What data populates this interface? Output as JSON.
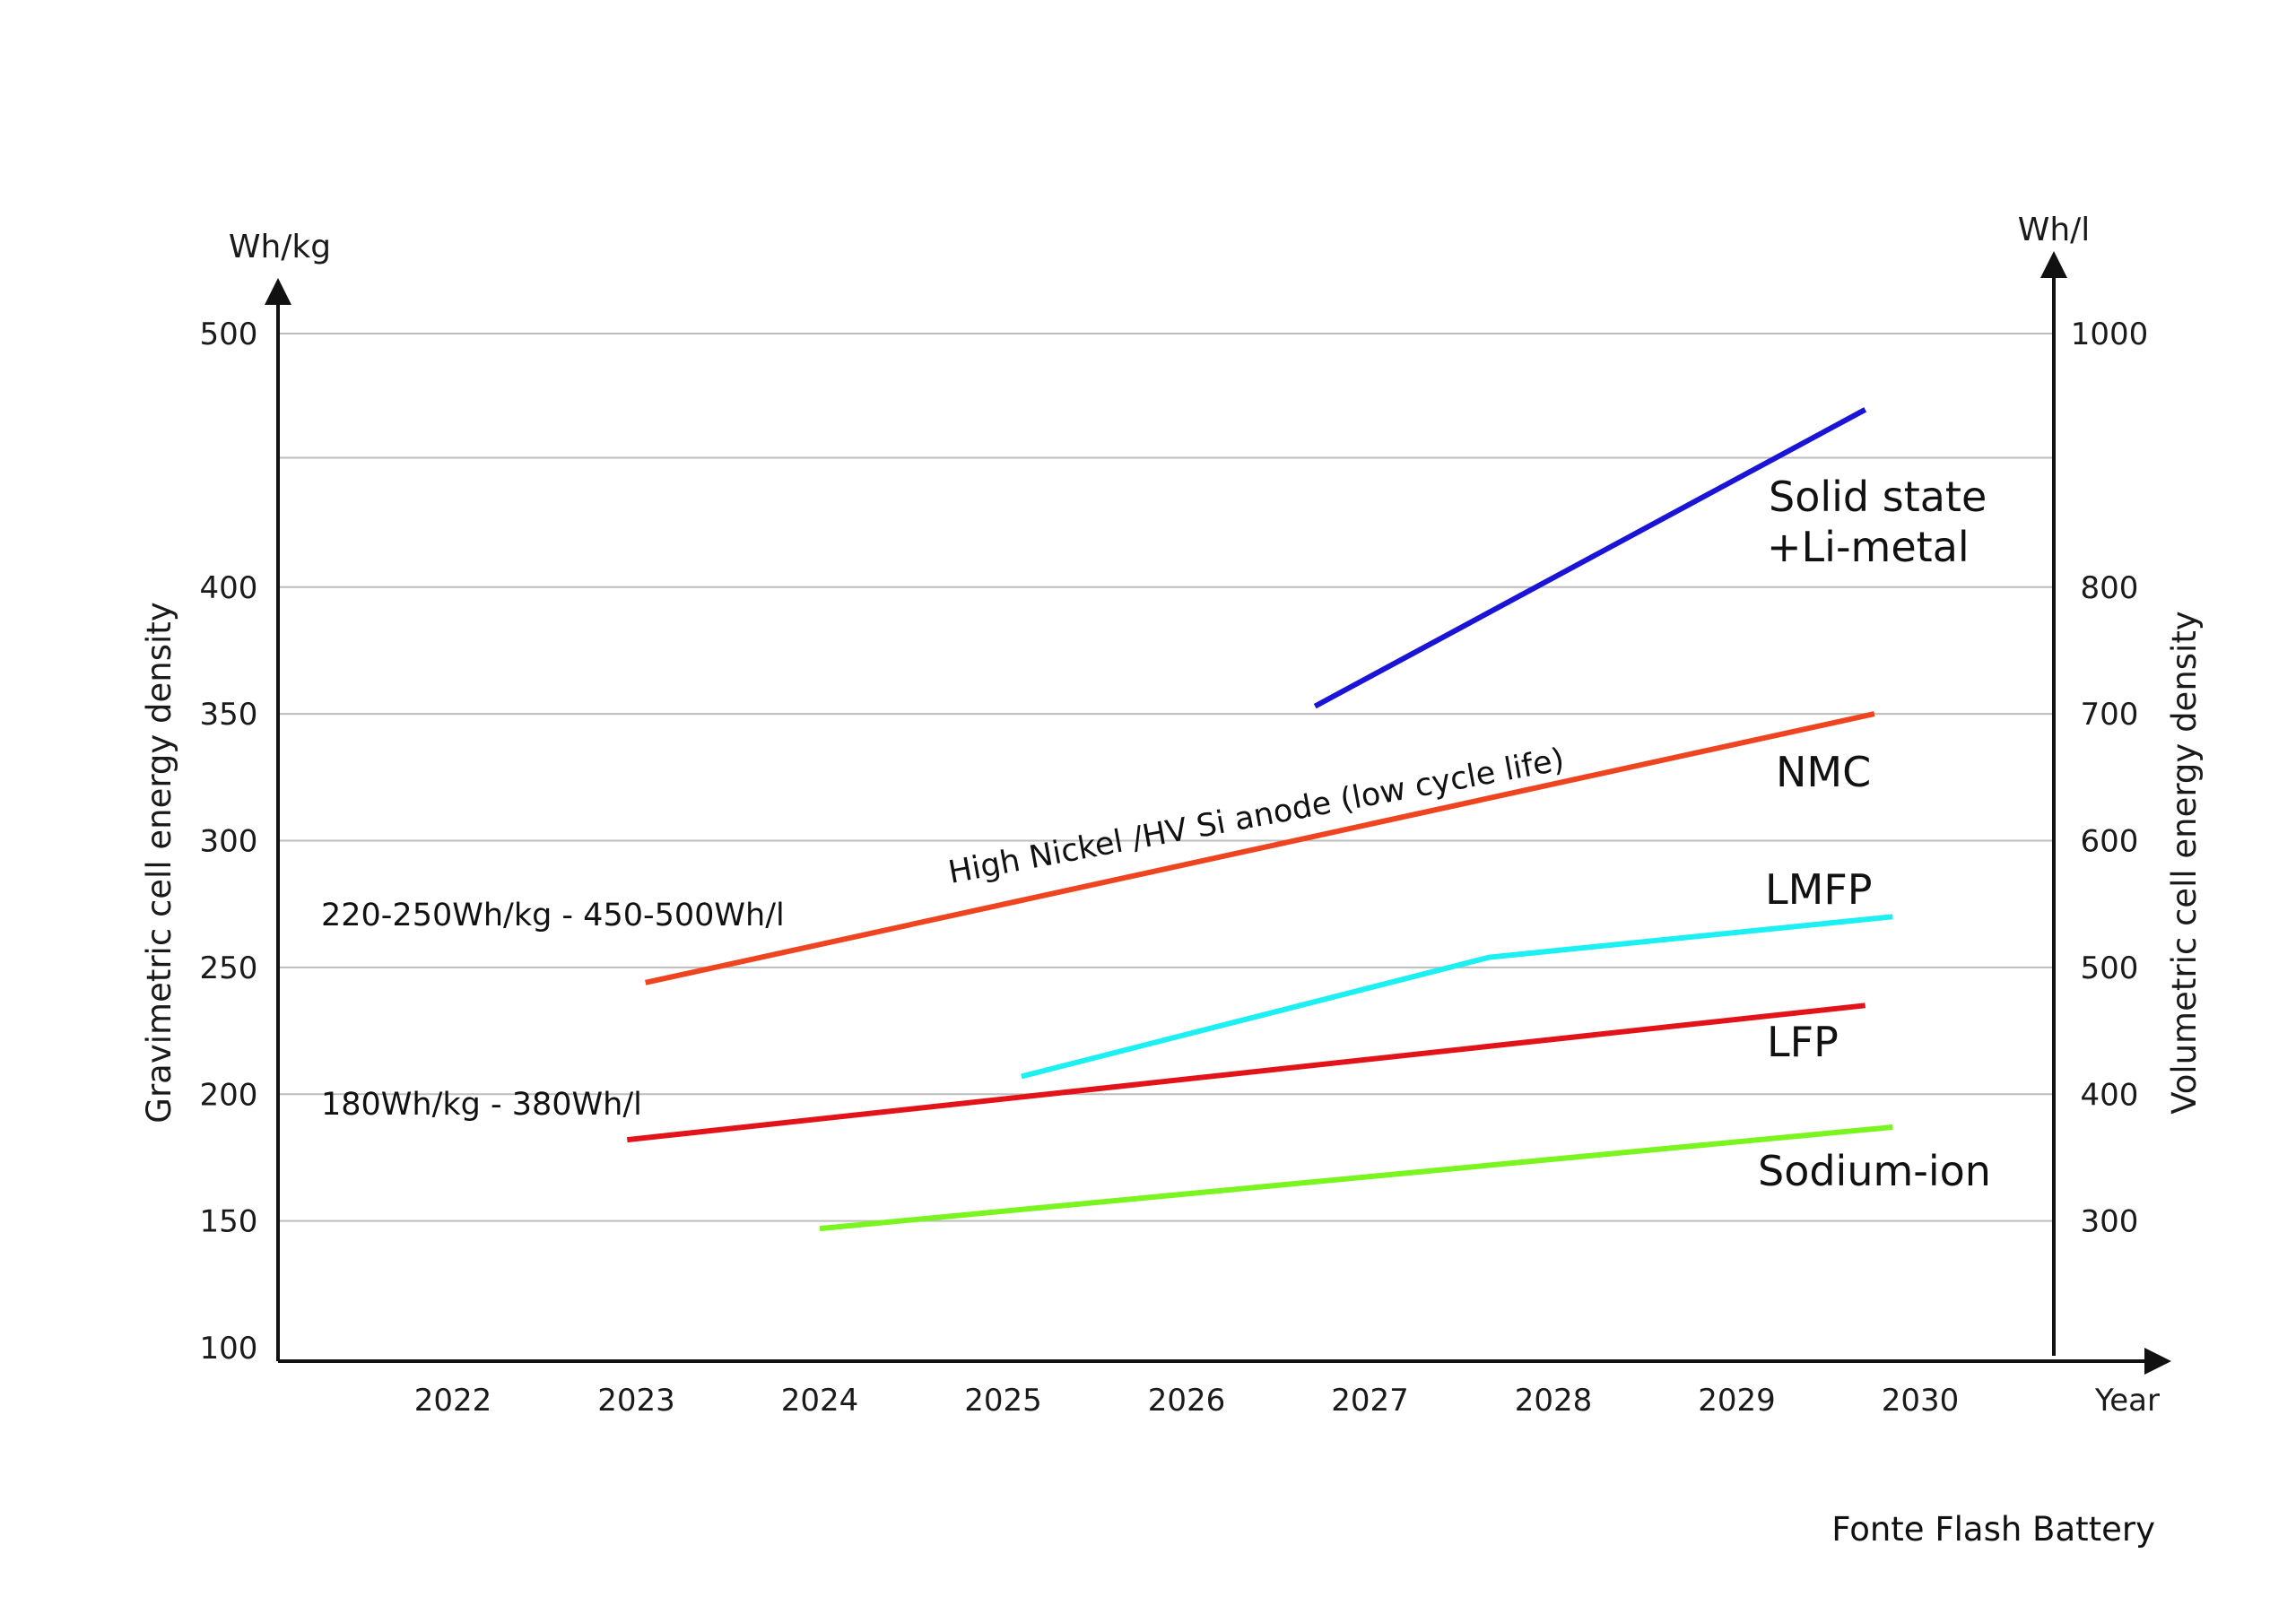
{
  "chart_data": {
    "type": "line",
    "left_axis": {
      "unit": "Wh/kg",
      "title": "Gravimetric cell energy density",
      "ylim": [
        100,
        500
      ],
      "ticks": [
        100,
        150,
        200,
        250,
        300,
        350,
        400,
        500
      ]
    },
    "right_axis": {
      "unit": "Wh/l",
      "title": "Volumetric cell energy density",
      "ylim": [
        200,
        1000
      ],
      "ticks": [
        300,
        400,
        500,
        600,
        700,
        800,
        1000
      ]
    },
    "x_axis": {
      "label": "Year",
      "categories": [
        "2022",
        "2023",
        "2024",
        "2025",
        "2026",
        "2027",
        "2028",
        "2029",
        "2030"
      ]
    },
    "gridlines_wh_kg": [
      150,
      200,
      250,
      300,
      350,
      400,
      451,
      500
    ],
    "series": [
      {
        "name": "Solid state +Li-metal",
        "label_lines": [
          "Solid state",
          "+Li-metal"
        ],
        "color": "#1a14d6",
        "points": [
          {
            "x": 2026.7,
            "y": 353
          },
          {
            "x": 2029.7,
            "y": 470
          }
        ]
      },
      {
        "name": "NMC",
        "label_lines": [
          "NMC"
        ],
        "color": "#ee4420",
        "points": [
          {
            "x": 2023.05,
            "y": 244
          },
          {
            "x": 2029.75,
            "y": 350
          }
        ]
      },
      {
        "name": "LMFP",
        "label_lines": [
          "LMFP"
        ],
        "color": "#1cf0f2",
        "points": [
          {
            "x": 2025.1,
            "y": 207
          },
          {
            "x": 2027.65,
            "y": 254
          },
          {
            "x": 2029.85,
            "y": 270
          }
        ]
      },
      {
        "name": "LFP",
        "label_lines": [
          "LFP"
        ],
        "color": "#e3131a",
        "points": [
          {
            "x": 2022.95,
            "y": 182
          },
          {
            "x": 2029.7,
            "y": 235
          }
        ]
      },
      {
        "name": "Sodium-ion",
        "label_lines": [
          "Sodium-ion"
        ],
        "color": "#7af520",
        "points": [
          {
            "x": 2024.0,
            "y": 147
          },
          {
            "x": 2029.85,
            "y": 187
          }
        ]
      }
    ],
    "annotations": [
      {
        "text": "High Nickel /HV Si anode (low cycle life)"
      },
      {
        "text": "220-250Wh/kg - 450-500Wh/l"
      },
      {
        "text": "180Wh/kg - 380Wh/l"
      }
    ],
    "source": "Fonte Flash Battery",
    "grid": true
  }
}
